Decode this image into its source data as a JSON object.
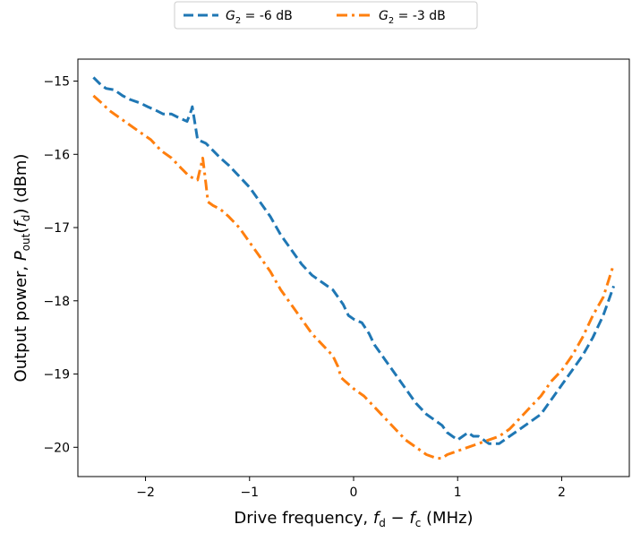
{
  "chart_data": {
    "type": "line",
    "xlabel": {
      "prefix": "Drive frequency, ",
      "f1": "f",
      "f1_sub": "d",
      "minus": " − ",
      "f2": "f",
      "f2_sub": "c",
      "suffix": " (MHz)"
    },
    "ylabel": {
      "prefix": "Output power, ",
      "P": "P",
      "P_sub": "out",
      "open": "(",
      "f": "f",
      "f_sub": "d",
      "close": ") (dBm)"
    },
    "xlim": [
      -2.65,
      2.65
    ],
    "ylim": [
      -20.4,
      -14.7
    ],
    "xticks": [
      -2,
      -1,
      0,
      1,
      2
    ],
    "xtick_labels": [
      "−2",
      "−1",
      "0",
      "1",
      "2"
    ],
    "yticks": [
      -15,
      -16,
      -17,
      -18,
      -19,
      -20
    ],
    "ytick_labels": [
      "−15",
      "−16",
      "−17",
      "−18",
      "−19",
      "−20"
    ],
    "grid": false,
    "legend_placement": "top-center",
    "series": [
      {
        "name": "G2 = -6 dB",
        "legend": {
          "G": "G",
          "sub": "2",
          "rest": " = -6 dB"
        },
        "color": "#1f77b4",
        "dash": "dashed",
        "x": [
          -2.5,
          -2.43,
          -2.38,
          -2.3,
          -2.22,
          -2.15,
          -2.05,
          -1.98,
          -1.9,
          -1.83,
          -1.75,
          -1.68,
          -1.6,
          -1.56,
          -1.55,
          -1.5,
          -1.42,
          -1.35,
          -1.28,
          -1.2,
          -1.1,
          -1.0,
          -0.9,
          -0.8,
          -0.7,
          -0.6,
          -0.5,
          -0.4,
          -0.3,
          -0.2,
          -0.15,
          -0.1,
          -0.05,
          0.0,
          0.08,
          0.15,
          0.2,
          0.25,
          0.3,
          0.4,
          0.5,
          0.6,
          0.7,
          0.8,
          0.85,
          0.9,
          0.95,
          1.0,
          1.05,
          1.1,
          1.15,
          1.2,
          1.25,
          1.3,
          1.4,
          1.5,
          1.6,
          1.7,
          1.8,
          1.9,
          2.0,
          2.1,
          2.2,
          2.3,
          2.4,
          2.5
        ],
        "y": [
          -14.95,
          -15.05,
          -15.1,
          -15.12,
          -15.2,
          -15.25,
          -15.3,
          -15.35,
          -15.4,
          -15.45,
          -15.45,
          -15.5,
          -15.55,
          -15.4,
          -15.35,
          -15.8,
          -15.85,
          -15.95,
          -16.05,
          -16.15,
          -16.3,
          -16.45,
          -16.65,
          -16.85,
          -17.1,
          -17.3,
          -17.5,
          -17.65,
          -17.75,
          -17.85,
          -17.95,
          -18.05,
          -18.2,
          -18.25,
          -18.3,
          -18.45,
          -18.6,
          -18.7,
          -18.8,
          -19.0,
          -19.2,
          -19.4,
          -19.55,
          -19.65,
          -19.7,
          -19.8,
          -19.85,
          -19.9,
          -19.85,
          -19.8,
          -19.85,
          -19.85,
          -19.9,
          -19.95,
          -19.95,
          -19.85,
          -19.75,
          -19.65,
          -19.55,
          -19.35,
          -19.15,
          -18.95,
          -18.75,
          -18.5,
          -18.2,
          -17.8
        ]
      },
      {
        "name": "G2 = -3 dB",
        "legend": {
          "G": "G",
          "sub": "2",
          "rest": " = -3 dB"
        },
        "color": "#ff7f0e",
        "dash": "dashdot",
        "x": [
          -2.5,
          -2.42,
          -2.35,
          -2.25,
          -2.15,
          -2.05,
          -1.95,
          -1.85,
          -1.75,
          -1.65,
          -1.58,
          -1.5,
          -1.45,
          -1.42,
          -1.4,
          -1.35,
          -1.28,
          -1.2,
          -1.1,
          -1.0,
          -0.9,
          -0.8,
          -0.7,
          -0.6,
          -0.5,
          -0.4,
          -0.3,
          -0.2,
          -0.15,
          -0.12,
          -0.08,
          0.0,
          0.1,
          0.2,
          0.3,
          0.4,
          0.5,
          0.6,
          0.7,
          0.8,
          0.85,
          0.9,
          1.0,
          1.1,
          1.2,
          1.3,
          1.4,
          1.5,
          1.6,
          1.7,
          1.8,
          1.9,
          2.0,
          2.1,
          2.2,
          2.3,
          2.4,
          2.5
        ],
        "y": [
          -15.2,
          -15.3,
          -15.4,
          -15.5,
          -15.6,
          -15.7,
          -15.8,
          -15.95,
          -16.05,
          -16.2,
          -16.3,
          -16.35,
          -16.05,
          -16.4,
          -16.65,
          -16.7,
          -16.75,
          -16.85,
          -17.0,
          -17.2,
          -17.4,
          -17.6,
          -17.85,
          -18.05,
          -18.25,
          -18.45,
          -18.6,
          -18.75,
          -18.9,
          -19.05,
          -19.1,
          -19.2,
          -19.3,
          -19.45,
          -19.6,
          -19.75,
          -19.9,
          -20.0,
          -20.1,
          -20.15,
          -20.15,
          -20.1,
          -20.05,
          -20.0,
          -19.95,
          -19.9,
          -19.85,
          -19.75,
          -19.6,
          -19.45,
          -19.3,
          -19.1,
          -18.95,
          -18.75,
          -18.5,
          -18.2,
          -17.95,
          -17.5
        ]
      }
    ]
  }
}
